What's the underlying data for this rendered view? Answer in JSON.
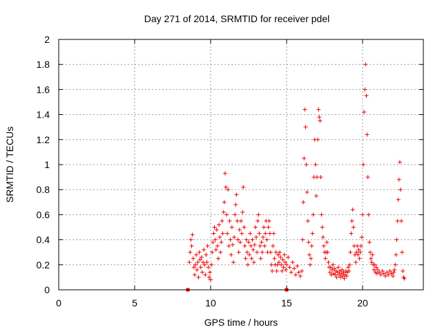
{
  "chart_data": {
    "type": "scatter",
    "title": "Day 271 of 2014, SRMTID for receiver pdel",
    "xlabel": "GPS time / hours",
    "ylabel": "SRMTID / TECUs",
    "xlim": [
      0,
      24
    ],
    "ylim": [
      0,
      2
    ],
    "xticks": [
      0,
      5,
      10,
      15,
      20
    ],
    "xtick_labels": [
      "0",
      "5",
      "10",
      "15",
      "20"
    ],
    "yticks": [
      0,
      0.2,
      0.4,
      0.6,
      0.8,
      1,
      1.2,
      1.4,
      1.6,
      1.8,
      2
    ],
    "ytick_labels": [
      "0",
      "0.2",
      "0.4",
      "0.6",
      "0.8",
      "1",
      "1.2",
      "1.4",
      "1.6",
      "1.8",
      "2"
    ],
    "grid": true,
    "marker": "+",
    "color": "#ee0000",
    "square_markers": [
      [
        8.5,
        0.0
      ],
      [
        15.0,
        0.0
      ]
    ],
    "series": [
      {
        "name": "pdel",
        "points": [
          [
            8.6,
            0.22
          ],
          [
            8.65,
            0.3
          ],
          [
            8.7,
            0.4
          ],
          [
            8.75,
            0.35
          ],
          [
            8.8,
            0.44
          ],
          [
            8.85,
            0.25
          ],
          [
            8.9,
            0.18
          ],
          [
            8.95,
            0.12
          ],
          [
            9.0,
            0.2
          ],
          [
            9.05,
            0.28
          ],
          [
            9.1,
            0.16
          ],
          [
            9.15,
            0.22
          ],
          [
            9.2,
            0.1
          ],
          [
            9.25,
            0.3
          ],
          [
            9.3,
            0.24
          ],
          [
            9.35,
            0.18
          ],
          [
            9.4,
            0.26
          ],
          [
            9.45,
            0.14
          ],
          [
            9.5,
            0.22
          ],
          [
            9.55,
            0.32
          ],
          [
            9.6,
            0.2
          ],
          [
            9.65,
            0.12
          ],
          [
            9.7,
            0.28
          ],
          [
            9.75,
            0.22
          ],
          [
            9.8,
            0.35
          ],
          [
            9.85,
            0.18
          ],
          [
            9.9,
            0.1
          ],
          [
            9.95,
            0.14
          ],
          [
            10.0,
            0.08
          ],
          [
            10.05,
            0.2
          ],
          [
            10.1,
            0.3
          ],
          [
            10.15,
            0.38
          ],
          [
            10.2,
            0.45
          ],
          [
            10.25,
            0.5
          ],
          [
            10.3,
            0.4
          ],
          [
            10.35,
            0.32
          ],
          [
            10.4,
            0.48
          ],
          [
            10.45,
            0.35
          ],
          [
            10.5,
            0.25
          ],
          [
            10.55,
            0.52
          ],
          [
            10.6,
            0.42
          ],
          [
            10.65,
            0.3
          ],
          [
            10.7,
            0.38
          ],
          [
            10.75,
            0.55
          ],
          [
            10.8,
            0.45
          ],
          [
            10.85,
            0.62
          ],
          [
            10.9,
            0.7
          ],
          [
            10.95,
            0.93
          ],
          [
            11.0,
            0.82
          ],
          [
            11.05,
            0.6
          ],
          [
            11.1,
            0.45
          ],
          [
            11.15,
            0.8
          ],
          [
            11.2,
            0.35
          ],
          [
            11.25,
            0.55
          ],
          [
            11.3,
            0.4
          ],
          [
            11.35,
            0.28
          ],
          [
            11.4,
            0.5
          ],
          [
            11.45,
            0.36
          ],
          [
            11.5,
            0.22
          ],
          [
            11.55,
            0.42
          ],
          [
            11.6,
            0.6
          ],
          [
            11.65,
            0.68
          ],
          [
            11.7,
            0.76
          ],
          [
            11.75,
            0.55
          ],
          [
            11.8,
            0.4
          ],
          [
            11.85,
            0.3
          ],
          [
            11.9,
            0.48
          ],
          [
            11.95,
            0.38
          ],
          [
            12.0,
            0.55
          ],
          [
            12.05,
            0.45
          ],
          [
            12.1,
            0.62
          ],
          [
            12.15,
            0.82
          ],
          [
            12.2,
            0.5
          ],
          [
            12.25,
            0.35
          ],
          [
            12.3,
            0.25
          ],
          [
            12.35,
            0.4
          ],
          [
            12.4,
            0.3
          ],
          [
            12.45,
            0.2
          ],
          [
            12.5,
            0.38
          ],
          [
            12.55,
            0.28
          ],
          [
            12.6,
            0.45
          ],
          [
            12.65,
            0.35
          ],
          [
            12.7,
            0.25
          ],
          [
            12.75,
            0.4
          ],
          [
            12.8,
            0.32
          ],
          [
            12.85,
            0.22
          ],
          [
            12.9,
            0.36
          ],
          [
            12.95,
            0.5
          ],
          [
            13.0,
            0.42
          ],
          [
            13.05,
            0.3
          ],
          [
            13.1,
            0.55
          ],
          [
            13.15,
            0.6
          ],
          [
            13.2,
            0.45
          ],
          [
            13.25,
            0.35
          ],
          [
            13.3,
            0.25
          ],
          [
            13.35,
            0.38
          ],
          [
            13.4,
            0.3
          ],
          [
            13.45,
            0.42
          ],
          [
            13.5,
            0.5
          ],
          [
            13.55,
            0.35
          ],
          [
            13.6,
            0.45
          ],
          [
            13.65,
            0.55
          ],
          [
            13.7,
            0.4
          ],
          [
            13.75,
            0.3
          ],
          [
            13.8,
            0.5
          ],
          [
            13.85,
            0.55
          ],
          [
            13.9,
            0.45
          ],
          [
            13.95,
            0.3
          ],
          [
            14.0,
            0.2
          ],
          [
            14.05,
            0.15
          ],
          [
            14.1,
            0.35
          ],
          [
            14.15,
            0.45
          ],
          [
            14.2,
            0.25
          ],
          [
            14.25,
            0.2
          ],
          [
            14.3,
            0.3
          ],
          [
            14.35,
            0.15
          ],
          [
            14.4,
            0.2
          ],
          [
            14.45,
            0.28
          ],
          [
            14.5,
            0.22
          ],
          [
            14.55,
            0.3
          ],
          [
            14.6,
            0.26
          ],
          [
            14.65,
            0.2
          ],
          [
            14.7,
            0.15
          ],
          [
            14.75,
            0.24
          ],
          [
            14.8,
            0.18
          ],
          [
            14.85,
            0.28
          ],
          [
            14.9,
            0.22
          ],
          [
            14.95,
            0.16
          ],
          [
            15.0,
            0.2
          ],
          [
            15.1,
            0.26
          ],
          [
            15.2,
            0.18
          ],
          [
            15.3,
            0.14
          ],
          [
            15.4,
            0.22
          ],
          [
            15.5,
            0.17
          ],
          [
            15.6,
            0.12
          ],
          [
            15.7,
            0.19
          ],
          [
            15.8,
            0.14
          ],
          [
            15.9,
            0.11
          ],
          [
            16.0,
            0.15
          ],
          [
            16.05,
            0.4
          ],
          [
            16.1,
            0.7
          ],
          [
            16.15,
            1.05
          ],
          [
            16.2,
            1.44
          ],
          [
            16.25,
            1.3
          ],
          [
            16.3,
            1.0
          ],
          [
            16.35,
            0.78
          ],
          [
            16.4,
            0.55
          ],
          [
            16.45,
            0.38
          ],
          [
            16.5,
            0.28
          ],
          [
            16.55,
            0.2
          ],
          [
            16.6,
            0.25
          ],
          [
            16.65,
            0.35
          ],
          [
            16.7,
            0.45
          ],
          [
            16.75,
            0.6
          ],
          [
            16.8,
            0.9
          ],
          [
            16.85,
            1.2
          ],
          [
            16.9,
            1.0
          ],
          [
            16.95,
            0.75
          ],
          [
            17.0,
            0.9
          ],
          [
            17.05,
            1.2
          ],
          [
            17.1,
            1.44
          ],
          [
            17.15,
            1.38
          ],
          [
            17.2,
            1.35
          ],
          [
            17.25,
            0.9
          ],
          [
            17.3,
            0.6
          ],
          [
            17.35,
            0.5
          ],
          [
            17.4,
            0.42
          ],
          [
            17.45,
            0.35
          ],
          [
            17.5,
            0.3
          ],
          [
            17.55,
            0.25
          ],
          [
            17.6,
            0.3
          ],
          [
            17.65,
            0.38
          ],
          [
            17.7,
            0.3
          ],
          [
            17.75,
            0.22
          ],
          [
            17.8,
            0.18
          ],
          [
            17.85,
            0.14
          ],
          [
            17.9,
            0.18
          ],
          [
            17.95,
            0.12
          ],
          [
            18.0,
            0.16
          ],
          [
            18.05,
            0.2
          ],
          [
            18.1,
            0.13
          ],
          [
            18.15,
            0.17
          ],
          [
            18.2,
            0.12
          ],
          [
            18.25,
            0.15
          ],
          [
            18.3,
            0.1
          ],
          [
            18.35,
            0.14
          ],
          [
            18.4,
            0.18
          ],
          [
            18.45,
            0.12
          ],
          [
            18.5,
            0.15
          ],
          [
            18.55,
            0.1
          ],
          [
            18.6,
            0.13
          ],
          [
            18.65,
            0.16
          ],
          [
            18.7,
            0.11
          ],
          [
            18.75,
            0.14
          ],
          [
            18.8,
            0.09
          ],
          [
            18.85,
            0.12
          ],
          [
            18.9,
            0.15
          ],
          [
            18.95,
            0.11
          ],
          [
            19.0,
            0.14
          ],
          [
            19.05,
            0.18
          ],
          [
            19.1,
            0.15
          ],
          [
            19.15,
            0.2
          ],
          [
            19.2,
            0.3
          ],
          [
            19.25,
            0.45
          ],
          [
            19.3,
            0.55
          ],
          [
            19.35,
            0.64
          ],
          [
            19.4,
            0.5
          ],
          [
            19.45,
            0.35
          ],
          [
            19.5,
            0.28
          ],
          [
            19.55,
            0.22
          ],
          [
            19.6,
            0.3
          ],
          [
            19.65,
            0.35
          ],
          [
            19.7,
            0.28
          ],
          [
            19.75,
            0.32
          ],
          [
            19.8,
            0.25
          ],
          [
            19.85,
            0.3
          ],
          [
            19.9,
            0.35
          ],
          [
            19.95,
            0.42
          ],
          [
            20.0,
            0.6
          ],
          [
            20.05,
            1.0
          ],
          [
            20.1,
            1.42
          ],
          [
            20.15,
            1.6
          ],
          [
            20.2,
            1.8
          ],
          [
            20.25,
            1.55
          ],
          [
            20.3,
            1.24
          ],
          [
            20.35,
            0.9
          ],
          [
            20.4,
            0.6
          ],
          [
            20.45,
            0.38
          ],
          [
            20.5,
            0.3
          ],
          [
            20.55,
            0.25
          ],
          [
            20.6,
            0.22
          ],
          [
            20.65,
            0.28
          ],
          [
            20.7,
            0.2
          ],
          [
            20.75,
            0.16
          ],
          [
            20.8,
            0.2
          ],
          [
            20.85,
            0.14
          ],
          [
            20.9,
            0.18
          ],
          [
            20.95,
            0.13
          ],
          [
            21.0,
            0.16
          ],
          [
            21.1,
            0.14
          ],
          [
            21.2,
            0.12
          ],
          [
            21.3,
            0.15
          ],
          [
            21.4,
            0.13
          ],
          [
            21.5,
            0.11
          ],
          [
            21.6,
            0.14
          ],
          [
            21.7,
            0.12
          ],
          [
            21.8,
            0.15
          ],
          [
            21.9,
            0.13
          ],
          [
            22.0,
            0.11
          ],
          [
            22.05,
            0.14
          ],
          [
            22.1,
            0.16
          ],
          [
            22.15,
            0.2
          ],
          [
            22.2,
            0.28
          ],
          [
            22.25,
            0.4
          ],
          [
            22.3,
            0.55
          ],
          [
            22.35,
            0.72
          ],
          [
            22.4,
            0.88
          ],
          [
            22.45,
            1.02
          ],
          [
            22.5,
            0.8
          ],
          [
            22.55,
            0.55
          ],
          [
            22.6,
            0.3
          ],
          [
            22.65,
            0.15
          ],
          [
            22.7,
            0.1
          ],
          [
            22.75,
            0.09
          ]
        ]
      }
    ]
  }
}
